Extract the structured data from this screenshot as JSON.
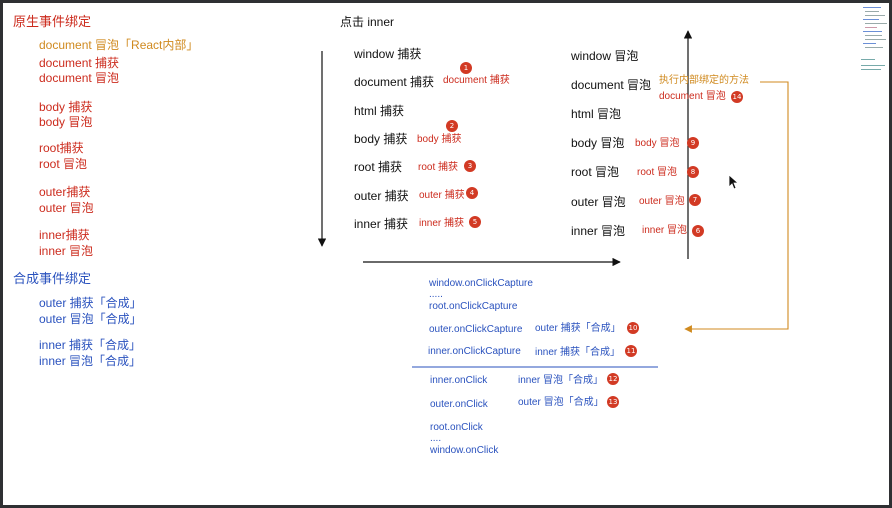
{
  "left": {
    "native_title": "原生事件绑定",
    "document_react": "document 冒泡「React内部」",
    "document_capture": "document 捕获",
    "document_bubble": "document 冒泡",
    "body_capture": "body 捕获",
    "body_bubble": "body 冒泡",
    "root_capture": "root捕获",
    "root_bubble": "root 冒泡",
    "outer_capture": "outer捕获",
    "outer_bubble": "outer 冒泡",
    "inner_capture": "inner捕获",
    "inner_bubble": "inner 冒泡",
    "synthetic_title": "合成事件绑定",
    "outer_capture_syn": "outer 捕获「合成」",
    "outer_bubble_syn": "outer 冒泡「合成」",
    "inner_capture_syn": "inner 捕获「合成」",
    "inner_bubble_syn": "inner 冒泡「合成」"
  },
  "center": {
    "title": "点击 inner",
    "window_capture": "window 捕获",
    "document_capture": "document 捕获",
    "document_capture_note": "document 捕获",
    "html_capture": "html 捕获",
    "body_capture": "body 捕获",
    "body_capture_note": "body 捕获",
    "root_capture": "root 捕获",
    "root_capture_note": "root 捕获",
    "outer_capture": "outer 捕获",
    "outer_capture_note": "outer 捕获",
    "inner_capture": "inner 捕获",
    "inner_capture_note": "inner 捕获"
  },
  "right": {
    "window_bubble": "window 冒泡",
    "document_bubble": "document 冒泡",
    "exec_note": "执行内部绑定的方法",
    "document_bubble_note": "document 冒泡",
    "html_bubble": "html 冒泡",
    "body_bubble": "body 冒泡",
    "body_bubble_note": "body 冒泡",
    "root_bubble": "root 冒泡",
    "root_bubble_note": "root 冒泡",
    "outer_bubble": "outer 冒泡",
    "outer_bubble_note": "outer 冒泡",
    "inner_bubble": "inner 冒泡",
    "inner_bubble_note": "inner 冒泡"
  },
  "synthetic": {
    "window_capture": "window.onClickCapture",
    "dots1": ".....",
    "root_capture": "root.onClickCapture",
    "outer_capture": "outer.onClickCapture",
    "outer_capture_note": "outer 捕获「合成」",
    "inner_capture": "inner.onClickCapture",
    "inner_capture_note": "inner 捕获「合成」",
    "inner_click": "inner.onClick",
    "inner_click_note": "inner 冒泡「合成」",
    "outer_click": "outer.onClick",
    "outer_click_note": "outer 冒泡「合成」",
    "root_click": "root.onClick",
    "dots2": "....",
    "window_click": "window.onClick"
  },
  "badges": [
    "1",
    "2",
    "3",
    "4",
    "5",
    "6",
    "7",
    "8",
    "9",
    "10",
    "11",
    "12",
    "13",
    "14"
  ],
  "colors": {
    "red": "#cc2b1d",
    "orange": "#d08a1f",
    "blue": "#2a52be",
    "badge": "#d23a24",
    "frame": "#2f3033"
  }
}
